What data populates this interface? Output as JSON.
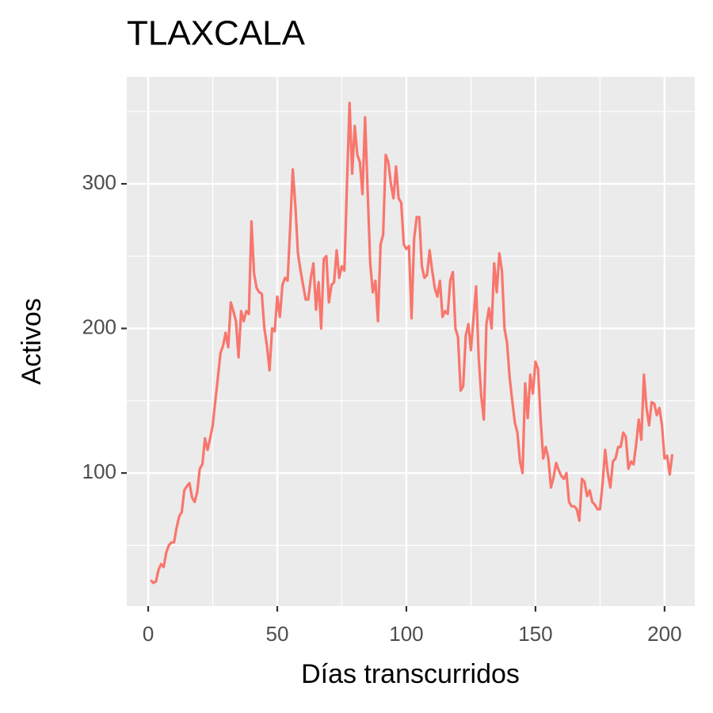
{
  "chart_data": {
    "type": "line",
    "title": "TLAXCALA",
    "x_label": "Días transcurridos",
    "y_label": "Activos",
    "xlim": [
      -8.3,
      211.7
    ],
    "ylim": [
      8,
      374
    ],
    "xticks": [
      0,
      50,
      100,
      150,
      200
    ],
    "yticks": [
      100,
      200,
      300
    ],
    "x_minor_gridlines": [
      25,
      75,
      125,
      175
    ],
    "y_minor_gridlines": [
      50,
      150,
      250,
      350
    ],
    "grid": true,
    "series": [
      {
        "color": "#F8766D",
        "x": [
          1,
          2,
          3,
          4,
          5,
          6,
          7,
          8,
          9,
          10,
          11,
          12,
          13,
          14,
          15,
          16,
          17,
          18,
          19,
          20,
          21,
          22,
          23,
          24,
          25,
          26,
          27,
          28,
          29,
          30,
          31,
          32,
          33,
          34,
          35,
          36,
          37,
          38,
          39,
          40,
          41,
          42,
          43,
          44,
          45,
          46,
          47,
          48,
          49,
          50,
          51,
          52,
          53,
          54,
          55,
          56,
          57,
          58,
          59,
          60,
          61,
          62,
          63,
          64,
          65,
          66,
          67,
          68,
          69,
          70,
          71,
          72,
          73,
          74,
          75,
          76,
          77,
          78,
          79,
          80,
          81,
          82,
          83,
          84,
          85,
          86,
          87,
          88,
          89,
          90,
          91,
          92,
          93,
          94,
          95,
          96,
          97,
          98,
          99,
          100,
          101,
          102,
          103,
          104,
          105,
          106,
          107,
          108,
          109,
          110,
          111,
          112,
          113,
          114,
          115,
          116,
          117,
          118,
          119,
          120,
          121,
          122,
          123,
          124,
          125,
          126,
          127,
          128,
          129,
          130,
          131,
          132,
          133,
          134,
          135,
          136,
          137,
          138,
          139,
          140,
          141,
          142,
          143,
          144,
          145,
          146,
          147,
          148,
          149,
          150,
          151,
          152,
          153,
          154,
          155,
          156,
          157,
          158,
          159,
          160,
          161,
          162,
          163,
          164,
          165,
          166,
          167,
          168,
          169,
          170,
          171,
          172,
          173,
          174,
          175,
          176,
          177,
          178,
          179,
          180,
          181,
          182,
          183,
          184,
          185,
          186,
          187,
          188,
          189,
          190,
          191,
          192,
          193,
          194,
          195,
          196,
          197,
          198,
          199,
          200,
          201,
          202,
          203
        ],
        "values": [
          26,
          24,
          25,
          33,
          37,
          35,
          45,
          50,
          52,
          52,
          62,
          70,
          73,
          88,
          91,
          93,
          83,
          80,
          87,
          103,
          106,
          124,
          116,
          124,
          133,
          150,
          166,
          183,
          188,
          197,
          187,
          218,
          212,
          205,
          180,
          212,
          205,
          212,
          210,
          274,
          238,
          228,
          225,
          224,
          200,
          188,
          171,
          200,
          198,
          222,
          208,
          230,
          235,
          233,
          270,
          310,
          285,
          252,
          240,
          230,
          220,
          220,
          235,
          245,
          213,
          232,
          200,
          248,
          250,
          218,
          230,
          232,
          254,
          235,
          243,
          240,
          300,
          356,
          307,
          340,
          320,
          315,
          293,
          346,
          295,
          245,
          225,
          233,
          205,
          258,
          265,
          320,
          315,
          300,
          290,
          312,
          290,
          287,
          258,
          255,
          257,
          207,
          262,
          277,
          277,
          243,
          235,
          237,
          254,
          240,
          228,
          222,
          233,
          208,
          212,
          210,
          233,
          239,
          200,
          194,
          157,
          160,
          195,
          203,
          185,
          207,
          229,
          180,
          153,
          137,
          203,
          214,
          200,
          245,
          225,
          252,
          240,
          200,
          190,
          166,
          150,
          135,
          128,
          108,
          100,
          162,
          138,
          168,
          155,
          177,
          172,
          137,
          110,
          118,
          110,
          90,
          97,
          107,
          102,
          98,
          96,
          100,
          80,
          77,
          77,
          75,
          67,
          96,
          94,
          84,
          88,
          80,
          78,
          75,
          75,
          93,
          116,
          100,
          90,
          108,
          110,
          118,
          118,
          128,
          125,
          103,
          108,
          106,
          120,
          137,
          123,
          168,
          145,
          133,
          149,
          148,
          140,
          145,
          133,
          110,
          112,
          99,
          113
        ]
      }
    ]
  }
}
